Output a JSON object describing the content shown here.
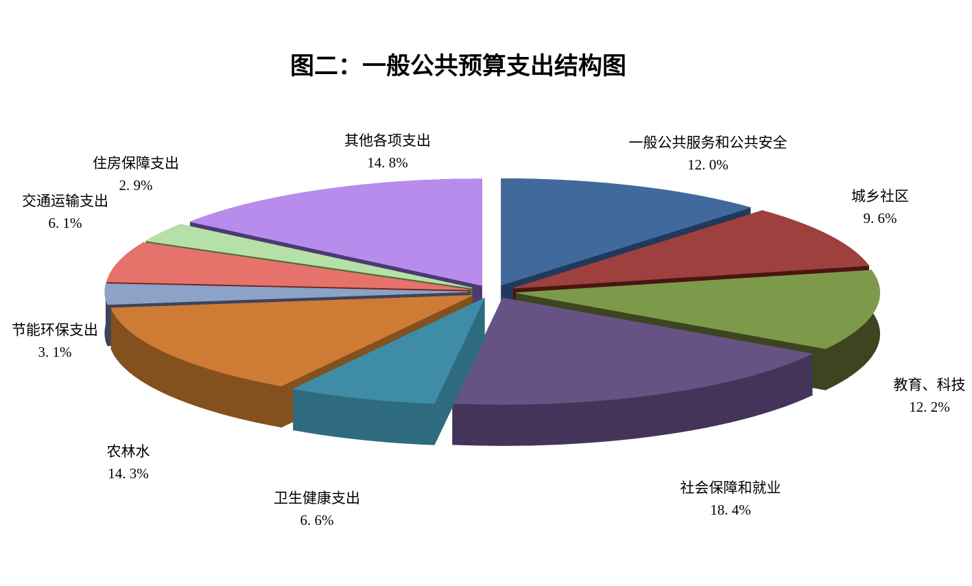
{
  "chart_data": {
    "type": "pie",
    "style": "3d-exploded-pie",
    "title": "图二：一般公共预算支出结构图",
    "unit": "%",
    "start_angle_deg": 0,
    "direction": "clockwise",
    "legend": "none",
    "labels_position": "outside",
    "background_color": "#ffffff",
    "title_color": "#000000",
    "label_color": "#000000",
    "slices": [
      {
        "label": "一般公共服务和公共安全",
        "value": 12.0,
        "pct_text": "12. 0%",
        "color": "#41699C",
        "side_color": "#20395C"
      },
      {
        "label": "城乡社区",
        "value": 9.6,
        "pct_text": "9. 6%",
        "color": "#9E403E",
        "side_color": "#4A1512"
      },
      {
        "label": "教育、科技",
        "value": 12.2,
        "pct_text": "12. 2%",
        "color": "#7D9A4B",
        "side_color": "#3C4520"
      },
      {
        "label": "社会保障和就业",
        "value": 18.4,
        "pct_text": "18. 4%",
        "color": "#675383",
        "side_color": "#453459"
      },
      {
        "label": "卫生健康支出",
        "value": 6.6,
        "pct_text": "6. 6%",
        "color": "#3E8CA6",
        "side_color": "#2E6B7E"
      },
      {
        "label": "农林水",
        "value": 14.3,
        "pct_text": "14. 3%",
        "color": "#CE7B35",
        "side_color": "#84501E"
      },
      {
        "label": "节能环保支出",
        "value": 3.1,
        "pct_text": "3. 1%",
        "color": "#8CA2C6",
        "side_color": "#3D4459"
      },
      {
        "label": "交通运输支出",
        "value": 6.1,
        "pct_text": "6. 1%",
        "color": "#E6736B",
        "side_color": "#71241F"
      },
      {
        "label": "住房保障支出",
        "value": 2.9,
        "pct_text": "2. 9%",
        "color": "#B5E0A7",
        "side_color": "#4D6F3E"
      },
      {
        "label": "其他各项支出",
        "value": 14.8,
        "pct_text": "14. 8%",
        "color": "#B88CEC",
        "side_color": "#4B3A72"
      }
    ]
  }
}
